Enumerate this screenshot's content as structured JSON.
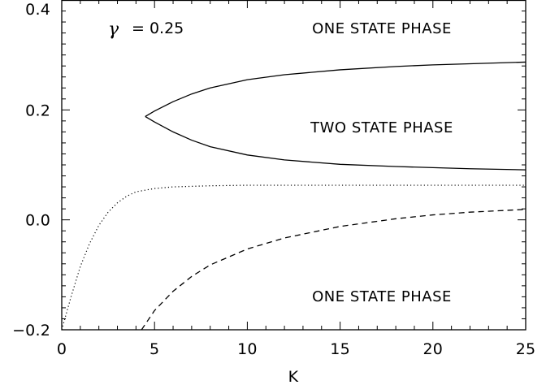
{
  "chart_data": {
    "type": "line",
    "title": "",
    "xlabel": "K",
    "ylabel": "",
    "xlim": [
      0,
      25
    ],
    "ylim": [
      -0.2,
      0.4
    ],
    "xticks": [
      0,
      5,
      10,
      15,
      20,
      25
    ],
    "xtick_labels": [
      "0",
      "5",
      "10",
      "15",
      "20",
      "25"
    ],
    "yticks": [
      -0.2,
      0.0,
      0.2,
      0.4
    ],
    "ytick_labels": [
      "−0.2",
      "0.0",
      "0.2",
      "0.4"
    ],
    "grid": false,
    "annotations": {
      "gamma_symbol": "γ",
      "gamma_value": "= 0.25",
      "region_top": "ONE STATE PHASE",
      "region_middle": "TWO STATE PHASE",
      "region_bottom": "ONE STATE PHASE"
    },
    "series": [
      {
        "style": "solid",
        "x": [
          4.5,
          5.0,
          6.0,
          7.0,
          8.0,
          10.0,
          12.0,
          15.0,
          18.0,
          20.0,
          22.0,
          25.0
        ],
        "values": [
          0.188,
          0.198,
          0.215,
          0.229,
          0.24,
          0.255,
          0.264,
          0.273,
          0.279,
          0.282,
          0.284,
          0.287
        ]
      },
      {
        "style": "solid",
        "x": [
          4.5,
          5.0,
          6.0,
          7.0,
          8.0,
          10.0,
          12.0,
          15.0,
          18.0,
          20.0,
          22.0,
          25.0
        ],
        "values": [
          0.188,
          0.178,
          0.16,
          0.145,
          0.133,
          0.118,
          0.109,
          0.101,
          0.097,
          0.095,
          0.093,
          0.091
        ]
      },
      {
        "style": "dotted",
        "x": [
          0.0,
          0.5,
          1.0,
          1.5,
          2.0,
          2.5,
          3.0,
          3.5,
          4.0,
          5.0,
          6.0,
          7.0,
          8.0,
          10.0,
          15.0,
          20.0,
          25.0
        ],
        "values": [
          -0.2,
          -0.14,
          -0.085,
          -0.043,
          -0.01,
          0.014,
          0.031,
          0.043,
          0.051,
          0.057,
          0.06,
          0.061,
          0.062,
          0.063,
          0.063,
          0.063,
          0.063
        ]
      },
      {
        "style": "dashed",
        "x": [
          4.3,
          5.0,
          6.0,
          7.0,
          8.0,
          10.0,
          12.0,
          15.0,
          18.0,
          20.0,
          22.0,
          25.0
        ],
        "values": [
          -0.2,
          -0.165,
          -0.13,
          -0.103,
          -0.082,
          -0.053,
          -0.033,
          -0.012,
          0.002,
          0.009,
          0.014,
          0.019
        ]
      }
    ]
  }
}
